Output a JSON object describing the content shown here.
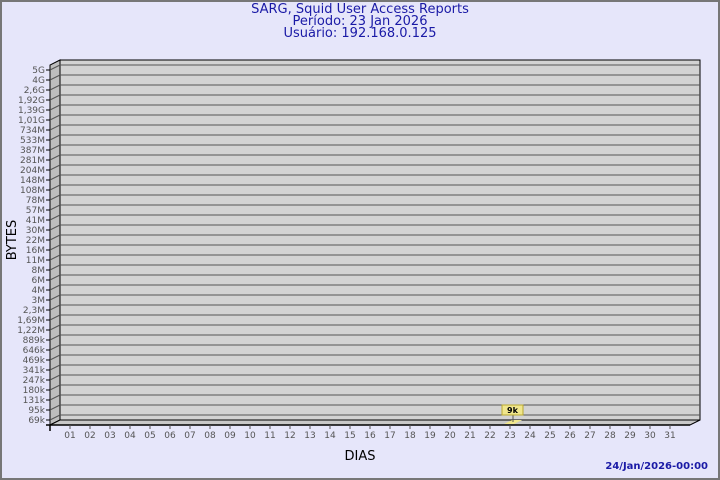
{
  "header": {
    "title": "SARG, Squid User Access Reports",
    "period": "Período: 23 Jan 2026",
    "user": "Usuário: 192.168.0.125"
  },
  "footer": {
    "timestamp": "24/Jan/2026-00:00"
  },
  "colors": {
    "background": "#e6e6fa",
    "wall": "#d3d3d3",
    "side": "#bebebe",
    "bar": "#f0e68c",
    "title": "#1a1aa6"
  },
  "chart_data": {
    "type": "bar",
    "xlabel": "DIAS",
    "ylabel": "BYTES",
    "y_scale": "log",
    "grid": true,
    "yticks": [
      "5G",
      "4G",
      "2,6G",
      "1,92G",
      "1,39G",
      "1,01G",
      "734M",
      "533M",
      "387M",
      "281M",
      "204M",
      "148M",
      "108M",
      "78M",
      "57M",
      "41M",
      "30M",
      "22M",
      "16M",
      "11M",
      "8M",
      "6M",
      "4M",
      "3M",
      "2,3M",
      "1,69M",
      "1,22M",
      "889k",
      "646k",
      "469k",
      "341k",
      "247k",
      "180k",
      "131k",
      "95k",
      "69k"
    ],
    "categories": [
      "01",
      "02",
      "03",
      "04",
      "05",
      "06",
      "07",
      "08",
      "09",
      "10",
      "11",
      "12",
      "13",
      "14",
      "15",
      "16",
      "17",
      "18",
      "19",
      "20",
      "21",
      "22",
      "23",
      "24",
      "25",
      "26",
      "27",
      "28",
      "29",
      "30",
      "31"
    ],
    "points": [
      {
        "x": "23",
        "value": 9000,
        "label": "9k"
      }
    ]
  }
}
